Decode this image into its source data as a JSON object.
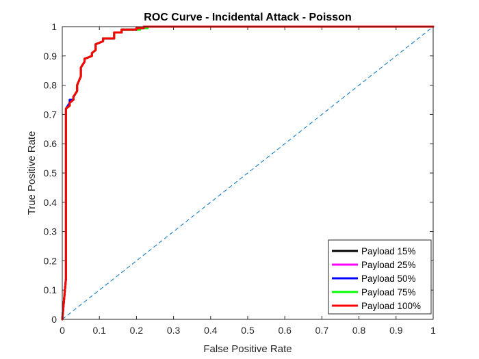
{
  "chart_data": {
    "type": "line",
    "title": "ROC Curve - Incidental Attack - Poisson",
    "xlabel": "False Positive Rate",
    "ylabel": "True Positive Rate",
    "xlim": [
      0,
      1
    ],
    "ylim": [
      0,
      1
    ],
    "xticks": [
      "0",
      "0.1",
      "0.2",
      "0.3",
      "0.4",
      "0.5",
      "0.6",
      "0.7",
      "0.8",
      "0.9",
      "1"
    ],
    "yticks": [
      "0",
      "0.1",
      "0.2",
      "0.3",
      "0.4",
      "0.5",
      "0.6",
      "0.7",
      "0.8",
      "0.9",
      "1"
    ],
    "grid": false,
    "legend_position": "bottom-right",
    "reference_line": {
      "x": [
        0,
        1
      ],
      "y": [
        0,
        1
      ],
      "style": "dashed",
      "color": "#0072BD"
    },
    "series": [
      {
        "name": "Payload 15%",
        "color": "#000000",
        "x": [
          0,
          0.01,
          0.01,
          0.02,
          0.02,
          0.03,
          0.03,
          0.04,
          0.04,
          0.05,
          0.05,
          0.06,
          0.06,
          0.08,
          0.08,
          0.09,
          0.09,
          0.11,
          0.11,
          0.14,
          0.14,
          0.16,
          0.16,
          0.2,
          0.2,
          0.22,
          0.22,
          1
        ],
        "y": [
          0,
          0.14,
          0.72,
          0.73,
          0.74,
          0.75,
          0.76,
          0.78,
          0.8,
          0.83,
          0.86,
          0.88,
          0.89,
          0.9,
          0.91,
          0.92,
          0.94,
          0.95,
          0.96,
          0.96,
          0.98,
          0.98,
          0.99,
          0.99,
          0.995,
          0.995,
          1,
          1
        ]
      },
      {
        "name": "Payload 25%",
        "color": "#FF00FF",
        "x": [
          0,
          0.01,
          0.01,
          0.02,
          0.02,
          0.03,
          0.03,
          0.04,
          0.04,
          0.05,
          0.05,
          0.06,
          0.06,
          0.08,
          0.08,
          0.09,
          0.09,
          0.11,
          0.11,
          0.14,
          0.14,
          0.16,
          0.16,
          0.2,
          0.2,
          0.22,
          0.22,
          1
        ],
        "y": [
          0,
          0.14,
          0.72,
          0.73,
          0.74,
          0.75,
          0.76,
          0.78,
          0.8,
          0.83,
          0.86,
          0.88,
          0.89,
          0.9,
          0.91,
          0.92,
          0.94,
          0.95,
          0.96,
          0.96,
          0.98,
          0.98,
          0.99,
          0.99,
          0.995,
          0.995,
          1,
          1
        ]
      },
      {
        "name": "Payload 50%",
        "color": "#0000FF",
        "x": [
          0,
          0.01,
          0.01,
          0.02,
          0.02,
          0.03,
          0.03,
          0.04,
          0.04,
          0.05,
          0.05,
          0.06,
          0.06,
          0.08,
          0.08,
          0.09,
          0.09,
          0.11,
          0.11,
          0.14,
          0.14,
          0.16,
          0.16,
          0.2,
          0.2,
          0.22,
          0.22,
          1
        ],
        "y": [
          0,
          0.14,
          0.72,
          0.74,
          0.75,
          0.75,
          0.76,
          0.78,
          0.8,
          0.83,
          0.86,
          0.88,
          0.89,
          0.9,
          0.91,
          0.92,
          0.94,
          0.95,
          0.96,
          0.96,
          0.98,
          0.98,
          0.99,
          0.99,
          0.995,
          0.995,
          1,
          1
        ]
      },
      {
        "name": "Payload 75%",
        "color": "#00FF00",
        "x": [
          0,
          0.01,
          0.01,
          0.02,
          0.02,
          0.03,
          0.03,
          0.04,
          0.04,
          0.05,
          0.05,
          0.06,
          0.06,
          0.08,
          0.08,
          0.09,
          0.09,
          0.11,
          0.11,
          0.14,
          0.14,
          0.16,
          0.16,
          0.21,
          0.21,
          0.23,
          0.23,
          1
        ],
        "y": [
          0,
          0.14,
          0.72,
          0.73,
          0.74,
          0.75,
          0.76,
          0.78,
          0.8,
          0.83,
          0.86,
          0.88,
          0.89,
          0.9,
          0.91,
          0.92,
          0.94,
          0.95,
          0.96,
          0.96,
          0.98,
          0.98,
          0.99,
          0.99,
          0.995,
          0.995,
          1,
          1
        ]
      },
      {
        "name": "Payload 100%",
        "color": "#FF0000",
        "x": [
          0,
          0.01,
          0.01,
          0.02,
          0.02,
          0.03,
          0.03,
          0.04,
          0.04,
          0.05,
          0.05,
          0.06,
          0.06,
          0.08,
          0.08,
          0.09,
          0.09,
          0.11,
          0.11,
          0.14,
          0.14,
          0.16,
          0.16,
          0.2,
          0.2,
          0.22,
          0.22,
          1
        ],
        "y": [
          0,
          0.14,
          0.72,
          0.73,
          0.74,
          0.75,
          0.76,
          0.78,
          0.8,
          0.83,
          0.86,
          0.88,
          0.89,
          0.9,
          0.91,
          0.92,
          0.94,
          0.95,
          0.96,
          0.96,
          0.98,
          0.98,
          0.99,
          0.99,
          0.995,
          0.995,
          1,
          1
        ]
      }
    ]
  }
}
